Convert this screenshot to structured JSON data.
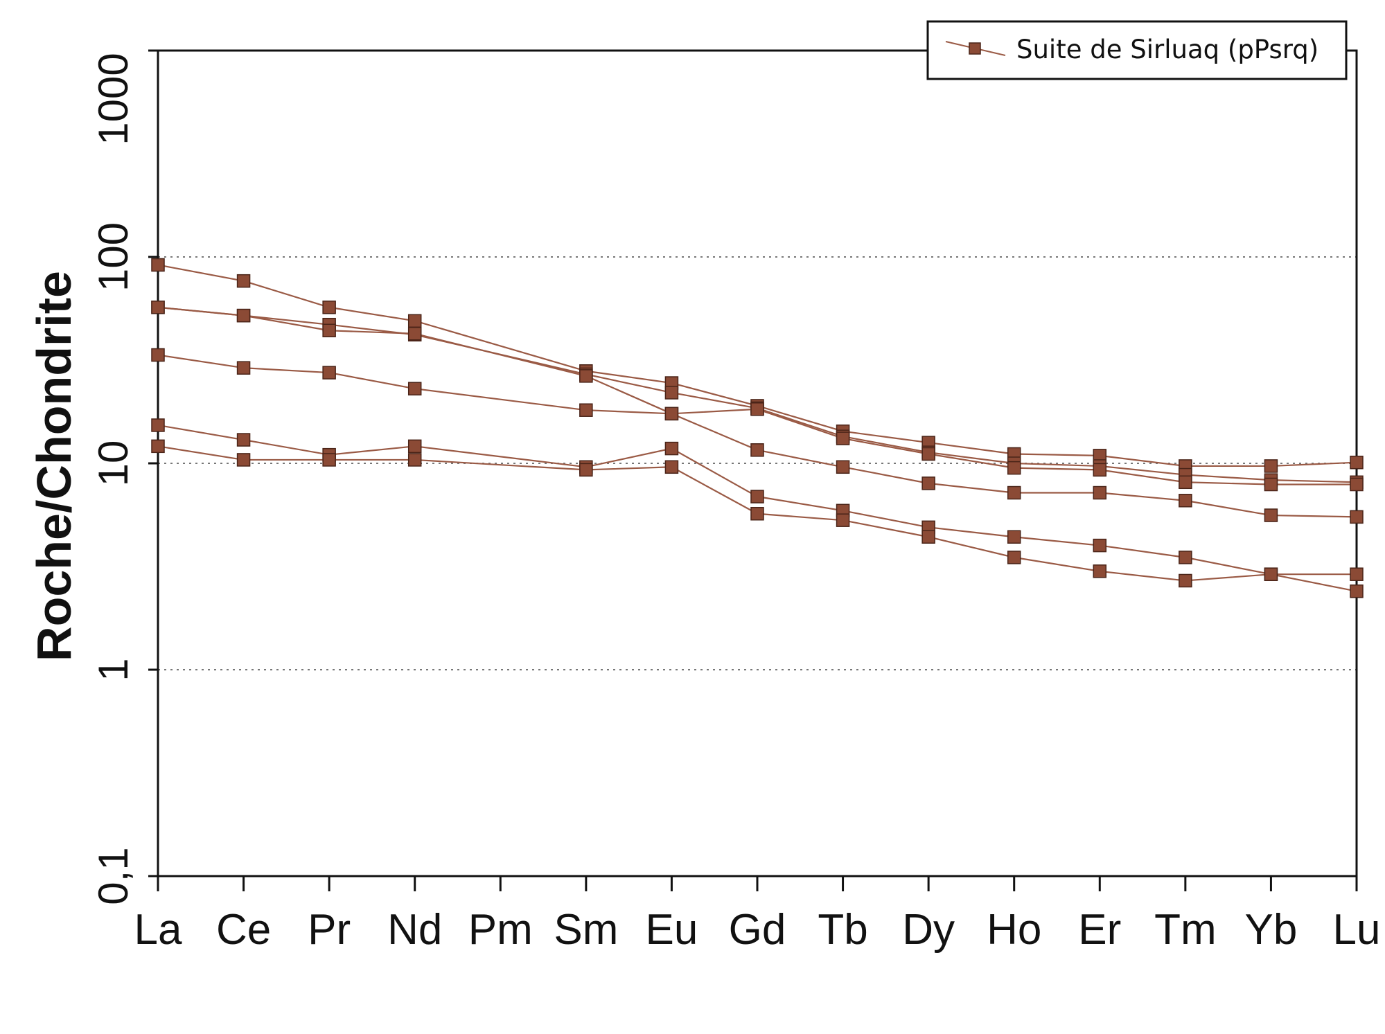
{
  "chart_data": {
    "type": "line",
    "title": "",
    "xlabel": "",
    "ylabel": "Roche/Chondrite",
    "yscale": "log",
    "ylim": [
      0.1,
      1000
    ],
    "yticks": [
      0.1,
      1,
      10,
      100,
      1000
    ],
    "ytick_labels": [
      "0,1",
      "1",
      "10",
      "100",
      "1000"
    ],
    "grid_lines": [
      1,
      10,
      100
    ],
    "categories": [
      "La",
      "Ce",
      "Pr",
      "Nd",
      "Pm",
      "Sm",
      "Eu",
      "Gd",
      "Tb",
      "Dy",
      "Ho",
      "Er",
      "Tm",
      "Yb",
      "Lu"
    ],
    "legend": {
      "label": "Suite de Sirluaq (pPsrq)",
      "placement": "top-right"
    },
    "color": "#8b4a35",
    "line_color": "#9a5a45",
    "series": [
      {
        "name": "Suite de Sirluaq (pPsrq) 1",
        "values": [
          91.5,
          76.5,
          57,
          49,
          null,
          28,
          24.5,
          19,
          14.3,
          12.6,
          11.1,
          10.9,
          9.7,
          9.7,
          10.1
        ]
      },
      {
        "name": "Suite de Sirluaq (pPsrq) 2",
        "values": [
          57,
          52,
          47,
          42,
          null,
          27,
          22,
          18.5,
          13.5,
          11.3,
          10,
          9.7,
          8.8,
          8.3,
          8.1
        ]
      },
      {
        "name": "Suite de Sirluaq (pPsrq) 3",
        "values": [
          57,
          52,
          44,
          42.5,
          null,
          26.5,
          17.4,
          11.6,
          9.6,
          8.0,
          7.2,
          7.2,
          6.6,
          5.6,
          5.5
        ]
      },
      {
        "name": "Suite de Sirluaq (pPsrq) 4",
        "values": [
          33.5,
          29,
          27.5,
          23,
          null,
          18.1,
          17.4,
          18.3,
          13.2,
          11.1,
          9.5,
          9.3,
          8.1,
          7.9,
          7.9
        ]
      },
      {
        "name": "Suite de Sirluaq (pPsrq) 5",
        "values": [
          15.3,
          13,
          11,
          12.1,
          null,
          9.6,
          11.8,
          6.9,
          5.9,
          4.9,
          4.4,
          4.0,
          3.5,
          2.9,
          2.4
        ]
      },
      {
        "name": "Suite de Sirluaq (pPsrq) 6",
        "values": [
          12.1,
          10.4,
          10.4,
          10.4,
          null,
          9.3,
          9.6,
          5.7,
          5.3,
          4.4,
          3.5,
          3.0,
          2.7,
          2.9,
          2.9
        ]
      }
    ]
  }
}
